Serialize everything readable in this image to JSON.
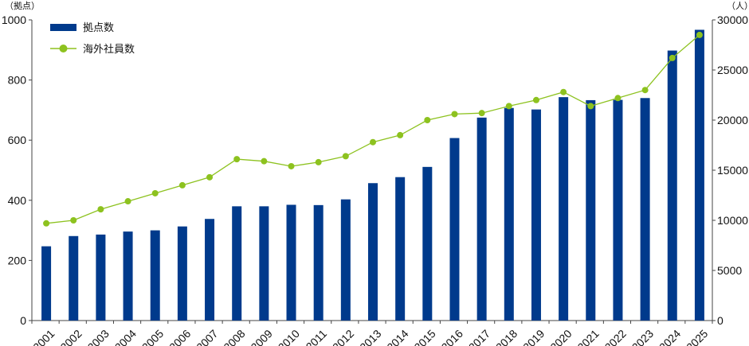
{
  "chart_data": {
    "type": "bar",
    "title": "",
    "xlabel": "",
    "left_axis_unit": "（拠点）",
    "right_axis_unit": "（人）",
    "categories": [
      "2001",
      "2002",
      "2003",
      "2004",
      "2005",
      "2006",
      "2007",
      "2008",
      "2009",
      "2010",
      "2011",
      "2012",
      "2013",
      "2014",
      "2015",
      "2016",
      "2017",
      "2018",
      "2019",
      "2020",
      "2021",
      "2022",
      "2023",
      "2024",
      "2025"
    ],
    "series": [
      {
        "name": "拠点数",
        "type": "bar",
        "axis": "left",
        "color": "#003a8c",
        "values": [
          247,
          281,
          286,
          296,
          300,
          313,
          338,
          380,
          380,
          385,
          384,
          403,
          457,
          477,
          511,
          607,
          675,
          707,
          702,
          743,
          733,
          734,
          740,
          898,
          967
        ]
      },
      {
        "name": "海外社員数",
        "type": "line",
        "axis": "right",
        "color": "#8dc21f",
        "values": [
          9700,
          10000,
          11100,
          11900,
          12700,
          13500,
          14300,
          16100,
          15900,
          15400,
          15800,
          16400,
          17800,
          18500,
          20000,
          20600,
          20700,
          21400,
          22000,
          22800,
          21400,
          22200,
          23000,
          26200,
          28500
        ]
      }
    ],
    "left_axis": {
      "min": 0,
      "max": 1000,
      "ticks": [
        0,
        200,
        400,
        600,
        800,
        1000
      ]
    },
    "right_axis": {
      "min": 0,
      "max": 30000,
      "ticks": [
        0,
        5000,
        10000,
        15000,
        20000,
        25000,
        30000
      ]
    },
    "grid": false,
    "legend_position": "top-left"
  }
}
